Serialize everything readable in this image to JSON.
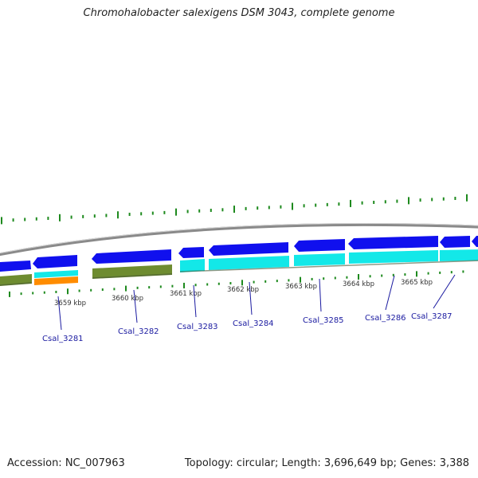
{
  "title": "Chromohalobacter salexigens DSM 3043, complete genome",
  "footer": {
    "accession": "Accession: NC_007963",
    "summary": "Topology: circular; Length: 3,696,649 bp; Genes: 3,388"
  },
  "colors": {
    "cds_strand": "#1010ee",
    "cog_primary": "#13e8e8",
    "cog_green": "#6e8c30",
    "cog_orange": "#ff8c00",
    "backbone": "#8a8a8a",
    "gc_skew_ticks": "#1e8a1e",
    "gene_label": "#1a1aa0"
  },
  "kbp_ticks": [
    "3659 kbp",
    "3660 kbp",
    "3661 kbp",
    "3662 kbp",
    "3663 kbp",
    "3664 kbp",
    "3665 kbp"
  ],
  "genes": [
    "Csal_3281",
    "Csal_3282",
    "Csal_3283",
    "Csal_3284",
    "Csal_3285",
    "Csal_3286",
    "Csal_3287"
  ]
}
